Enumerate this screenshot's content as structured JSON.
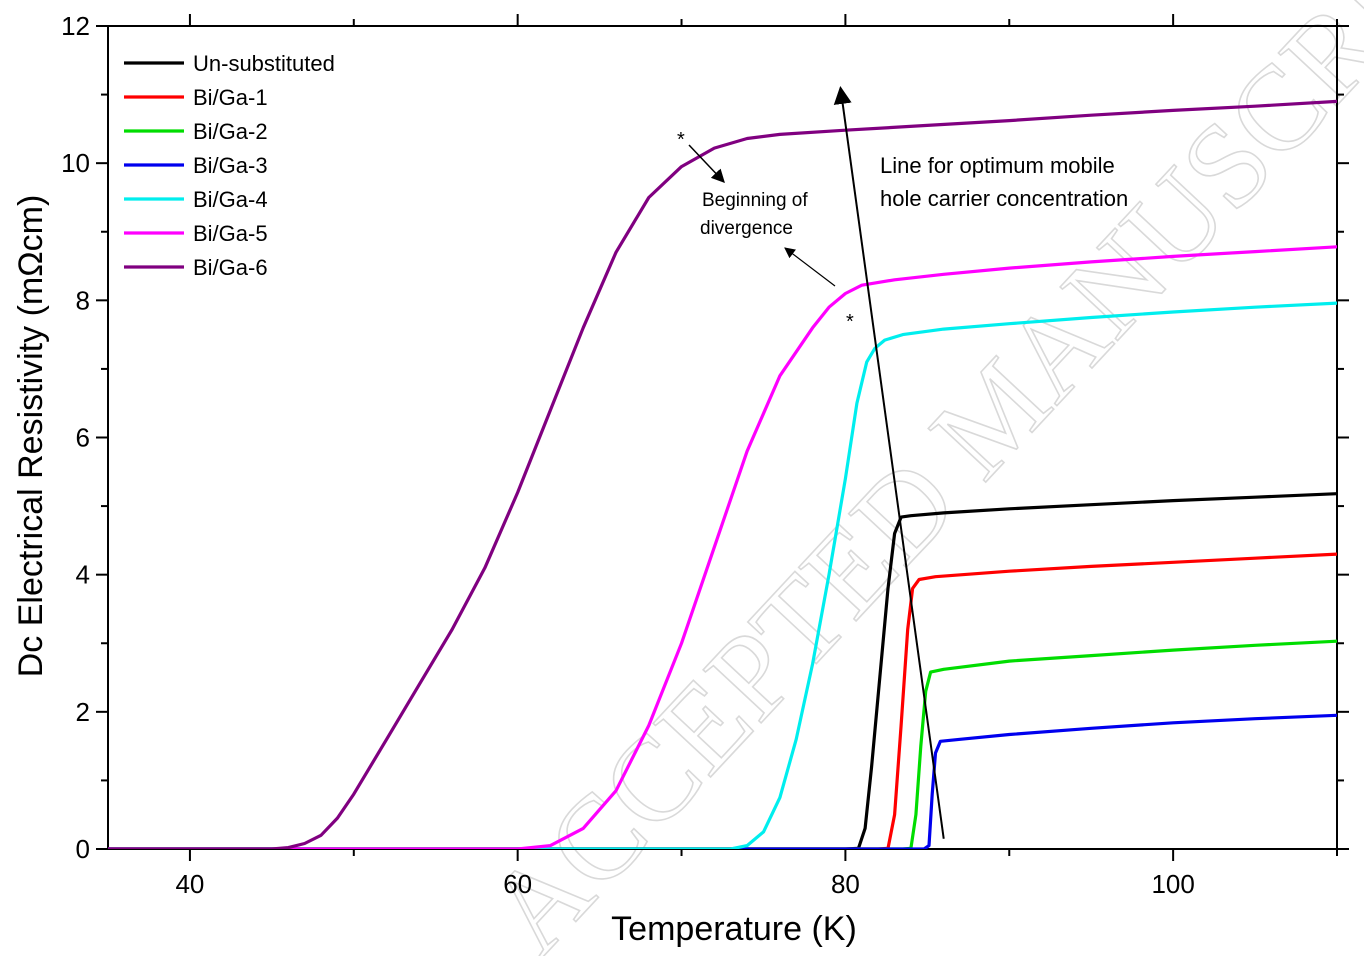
{
  "chart_data": {
    "type": "line",
    "title": "",
    "xlabel": "Temperature (K)",
    "ylabel": "Dc Electrical Resistivity (mΩcm)",
    "xlim": [
      35,
      110
    ],
    "ylim": [
      0,
      12
    ],
    "xticks": [
      40,
      60,
      80,
      100
    ],
    "yticks": [
      0,
      2,
      4,
      6,
      8,
      10,
      12
    ],
    "grid": false,
    "legend_position": "top-left",
    "series": [
      {
        "name": "Un-substituted",
        "color": "#000000",
        "points": [
          [
            35,
            0
          ],
          [
            80,
            0
          ],
          [
            80.8,
            0.01
          ],
          [
            81.2,
            0.3
          ],
          [
            81.6,
            1.2
          ],
          [
            82.1,
            2.5
          ],
          [
            82.6,
            3.8
          ],
          [
            83.0,
            4.6
          ],
          [
            83.4,
            4.84
          ],
          [
            84,
            4.86
          ],
          [
            86,
            4.9
          ],
          [
            90,
            4.96
          ],
          [
            95,
            5.02
          ],
          [
            100,
            5.08
          ],
          [
            105,
            5.13
          ],
          [
            110,
            5.18
          ]
        ]
      },
      {
        "name": "Bi/Ga-1",
        "color": "#ff0000",
        "points": [
          [
            35,
            0
          ],
          [
            82,
            0
          ],
          [
            82.6,
            0.01
          ],
          [
            83.0,
            0.5
          ],
          [
            83.4,
            1.8
          ],
          [
            83.8,
            3.2
          ],
          [
            84.1,
            3.8
          ],
          [
            84.5,
            3.93
          ],
          [
            85.5,
            3.97
          ],
          [
            90,
            4.05
          ],
          [
            95,
            4.12
          ],
          [
            100,
            4.18
          ],
          [
            105,
            4.24
          ],
          [
            110,
            4.3
          ]
        ]
      },
      {
        "name": "Bi/Ga-2",
        "color": "#00dd00",
        "points": [
          [
            35,
            0
          ],
          [
            83.5,
            0
          ],
          [
            84,
            0.01
          ],
          [
            84.3,
            0.5
          ],
          [
            84.6,
            1.5
          ],
          [
            84.9,
            2.3
          ],
          [
            85.2,
            2.58
          ],
          [
            86,
            2.62
          ],
          [
            90,
            2.74
          ],
          [
            95,
            2.82
          ],
          [
            100,
            2.9
          ],
          [
            105,
            2.97
          ],
          [
            110,
            3.03
          ]
        ]
      },
      {
        "name": "Bi/Ga-3",
        "color": "#0000ee",
        "points": [
          [
            35,
            0
          ],
          [
            84.8,
            0
          ],
          [
            85.1,
            0.05
          ],
          [
            85.3,
            0.8
          ],
          [
            85.5,
            1.4
          ],
          [
            85.8,
            1.57
          ],
          [
            87,
            1.6
          ],
          [
            90,
            1.67
          ],
          [
            95,
            1.76
          ],
          [
            100,
            1.84
          ],
          [
            105,
            1.9
          ],
          [
            110,
            1.95
          ]
        ]
      },
      {
        "name": "Bi/Ga-4",
        "color": "#00eeee",
        "points": [
          [
            35,
            0
          ],
          [
            73,
            0
          ],
          [
            74,
            0.05
          ],
          [
            75,
            0.25
          ],
          [
            76,
            0.75
          ],
          [
            77,
            1.6
          ],
          [
            78,
            2.7
          ],
          [
            79,
            4.0
          ],
          [
            80,
            5.4
          ],
          [
            80.7,
            6.5
          ],
          [
            81.3,
            7.1
          ],
          [
            81.8,
            7.3
          ],
          [
            82.4,
            7.42
          ],
          [
            83.5,
            7.5
          ],
          [
            86,
            7.58
          ],
          [
            90,
            7.66
          ],
          [
            95,
            7.75
          ],
          [
            100,
            7.83
          ],
          [
            105,
            7.9
          ],
          [
            110,
            7.96
          ]
        ]
      },
      {
        "name": "Bi/Ga-5",
        "color": "#ff00ff",
        "points": [
          [
            35,
            0
          ],
          [
            60,
            0
          ],
          [
            62,
            0.05
          ],
          [
            64,
            0.3
          ],
          [
            66,
            0.85
          ],
          [
            68,
            1.8
          ],
          [
            70,
            3.0
          ],
          [
            72,
            4.4
          ],
          [
            74,
            5.8
          ],
          [
            76,
            6.9
          ],
          [
            78,
            7.6
          ],
          [
            79,
            7.9
          ],
          [
            80,
            8.1
          ],
          [
            81,
            8.22
          ],
          [
            83,
            8.3
          ],
          [
            86,
            8.38
          ],
          [
            90,
            8.47
          ],
          [
            95,
            8.56
          ],
          [
            100,
            8.64
          ],
          [
            105,
            8.71
          ],
          [
            110,
            8.78
          ]
        ]
      },
      {
        "name": "Bi/Ga-6",
        "color": "#800080",
        "points": [
          [
            35,
            0
          ],
          [
            45,
            0
          ],
          [
            46,
            0.02
          ],
          [
            47,
            0.08
          ],
          [
            48,
            0.2
          ],
          [
            49,
            0.45
          ],
          [
            50,
            0.8
          ],
          [
            52,
            1.6
          ],
          [
            54,
            2.4
          ],
          [
            56,
            3.2
          ],
          [
            58,
            4.1
          ],
          [
            60,
            5.2
          ],
          [
            62,
            6.4
          ],
          [
            64,
            7.6
          ],
          [
            66,
            8.7
          ],
          [
            68,
            9.5
          ],
          [
            70,
            9.95
          ],
          [
            72,
            10.22
          ],
          [
            74,
            10.36
          ],
          [
            76,
            10.42
          ],
          [
            80,
            10.48
          ],
          [
            85,
            10.55
          ],
          [
            90,
            10.62
          ],
          [
            95,
            10.7
          ],
          [
            100,
            10.77
          ],
          [
            105,
            10.83
          ],
          [
            110,
            10.9
          ]
        ]
      }
    ],
    "annotations": {
      "optimum_line": {
        "label_line1": "Line for optimum mobile",
        "label_line2": "hole carrier concentration",
        "from": [
          86,
          0.15
        ],
        "to": [
          79.7,
          11.1
        ]
      },
      "divergence": {
        "label_line1": "Beginning of",
        "label_line2": "divergence",
        "star1": "*",
        "star2": "*"
      }
    }
  },
  "watermark": "ACCEPTED MANUSCRIPT"
}
